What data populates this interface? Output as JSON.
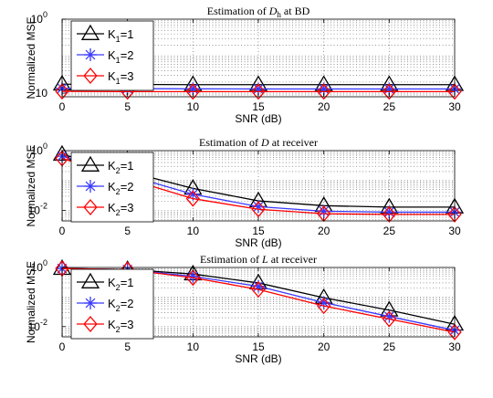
{
  "chart_data": [
    {
      "type": "line",
      "title": {
        "pre": "Estimation of ",
        "var": "D",
        "sub": "h",
        "post": " at BD"
      },
      "xlabel": "SNR (dB)",
      "ylabel": "Normalized MSE",
      "yscale": "log",
      "x": [
        0,
        5,
        10,
        15,
        20,
        25,
        30
      ],
      "xlim": [
        0,
        30
      ],
      "ylim": [
        0.008,
        1
      ],
      "ytick_labels": [
        {
          "base": "10",
          "exp": "0",
          "value": 1
        },
        {
          "base": "10",
          "exp": "",
          "value": 0.01
        }
      ],
      "xtick_labels": [
        "0",
        "5",
        "10",
        "15",
        "20",
        "25",
        "30"
      ],
      "grid": true,
      "legend_position": "left",
      "series": [
        {
          "name": "K",
          "sub": "1",
          "eq": "=1",
          "color": "#000000",
          "marker": "triangle",
          "values": [
            0.0175,
            0.0172,
            0.017,
            0.017,
            0.017,
            0.017,
            0.017
          ]
        },
        {
          "name": "K",
          "sub": "1",
          "eq": "=2",
          "color": "#3a3aff",
          "marker": "asterisk",
          "values": [
            0.0135,
            0.0133,
            0.0131,
            0.013,
            0.013,
            0.013,
            0.013
          ]
        },
        {
          "name": "K",
          "sub": "1",
          "eq": "=3",
          "color": "#ff0000",
          "marker": "diamond",
          "values": [
            0.0112,
            0.011,
            0.011,
            0.011,
            0.011,
            0.011,
            0.011
          ]
        }
      ]
    },
    {
      "type": "line",
      "title": {
        "pre": "Estimation of ",
        "var": "D",
        "sub": "",
        "post": " at receiver"
      },
      "xlabel": "SNR (dB)",
      "ylabel": "Normalized MSE",
      "yscale": "log",
      "x": [
        0,
        5,
        10,
        15,
        20,
        25,
        30
      ],
      "xlim": [
        0,
        30
      ],
      "ylim": [
        0.0045,
        1
      ],
      "ytick_labels": [
        {
          "base": "10",
          "exp": "0",
          "value": 1
        },
        {
          "base": "10",
          "exp": "-2",
          "value": 0.01
        }
      ],
      "xtick_labels": [
        "0",
        "5",
        "10",
        "15",
        "20",
        "25",
        "30"
      ],
      "grid": true,
      "legend_position": "left",
      "series": [
        {
          "name": "K",
          "sub": "2",
          "eq": "=1",
          "color": "#000000",
          "marker": "triangle",
          "values": [
            0.75,
            0.2,
            0.055,
            0.021,
            0.0145,
            0.013,
            0.013
          ]
        },
        {
          "name": "K",
          "sub": "2",
          "eq": "=2",
          "color": "#3a3aff",
          "marker": "asterisk",
          "values": [
            0.65,
            0.15,
            0.035,
            0.0135,
            0.0095,
            0.0088,
            0.0088
          ]
        },
        {
          "name": "K",
          "sub": "2",
          "eq": "=3",
          "color": "#ff0000",
          "marker": "diamond",
          "values": [
            0.55,
            0.115,
            0.025,
            0.011,
            0.0078,
            0.0074,
            0.0074
          ]
        }
      ]
    },
    {
      "type": "line",
      "title": {
        "pre": "Estimation of ",
        "var": "L",
        "sub": "",
        "post": " at receiver"
      },
      "xlabel": "SNR (dB)",
      "ylabel": "Normalized MSE",
      "yscale": "log",
      "x": [
        0,
        5,
        10,
        15,
        20,
        25,
        30
      ],
      "xlim": [
        0,
        30
      ],
      "ylim": [
        0.0045,
        1
      ],
      "ytick_labels": [
        {
          "base": "10",
          "exp": "0",
          "value": 1
        },
        {
          "base": "10",
          "exp": "-2",
          "value": 0.01
        }
      ],
      "xtick_labels": [
        "0",
        "5",
        "10",
        "15",
        "20",
        "25",
        "30"
      ],
      "grid": true,
      "legend_position": "left",
      "series": [
        {
          "name": "K",
          "sub": "2",
          "eq": "=1",
          "color": "#000000",
          "marker": "triangle",
          "values": [
            0.92,
            0.85,
            0.6,
            0.3,
            0.095,
            0.036,
            0.012
          ]
        },
        {
          "name": "K",
          "sub": "2",
          "eq": "=2",
          "color": "#3a3aff",
          "marker": "asterisk",
          "values": [
            0.92,
            0.85,
            0.5,
            0.23,
            0.065,
            0.022,
            0.0075
          ]
        },
        {
          "name": "K",
          "sub": "2",
          "eq": "=3",
          "color": "#ff0000",
          "marker": "diamond",
          "values": [
            0.92,
            0.85,
            0.45,
            0.18,
            0.05,
            0.018,
            0.0065
          ]
        }
      ]
    }
  ]
}
